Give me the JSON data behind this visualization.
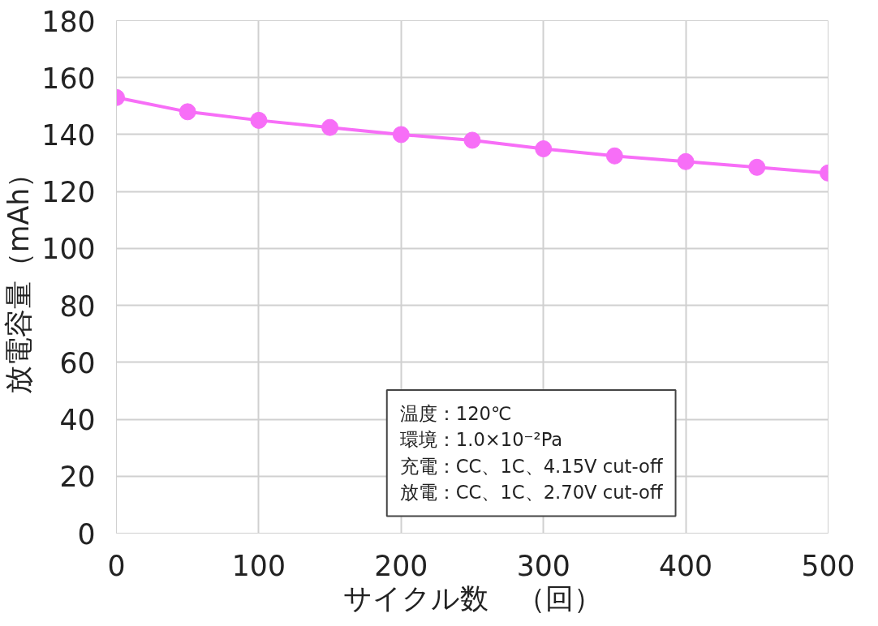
{
  "chart_data": {
    "type": "line",
    "xlabel": "サイクル数　（回）",
    "ylabel": "放電容量（mAh）",
    "x": [
      0,
      50,
      100,
      150,
      200,
      250,
      300,
      350,
      400,
      450,
      500
    ],
    "series": [
      {
        "color": "#f76ef7",
        "values": [
          153,
          148,
          145,
          142.5,
          140,
          138,
          135,
          132.5,
          130.5,
          128.5,
          126.5
        ]
      }
    ],
    "xlim": [
      0,
      500
    ],
    "ylim": [
      0,
      180
    ],
    "xticks": [
      0,
      100,
      200,
      300,
      400,
      500
    ],
    "yticks": [
      0,
      20,
      40,
      60,
      80,
      100,
      120,
      140,
      160,
      180
    ],
    "grid": true,
    "marker": "circle",
    "line_style": "solid",
    "annotations": [
      "温度：120℃",
      "環境：1.0×10⁻²Pa",
      "充電：CC、1C、4.15V cut-off",
      "放電：CC、1C、2.70V cut-off"
    ]
  }
}
